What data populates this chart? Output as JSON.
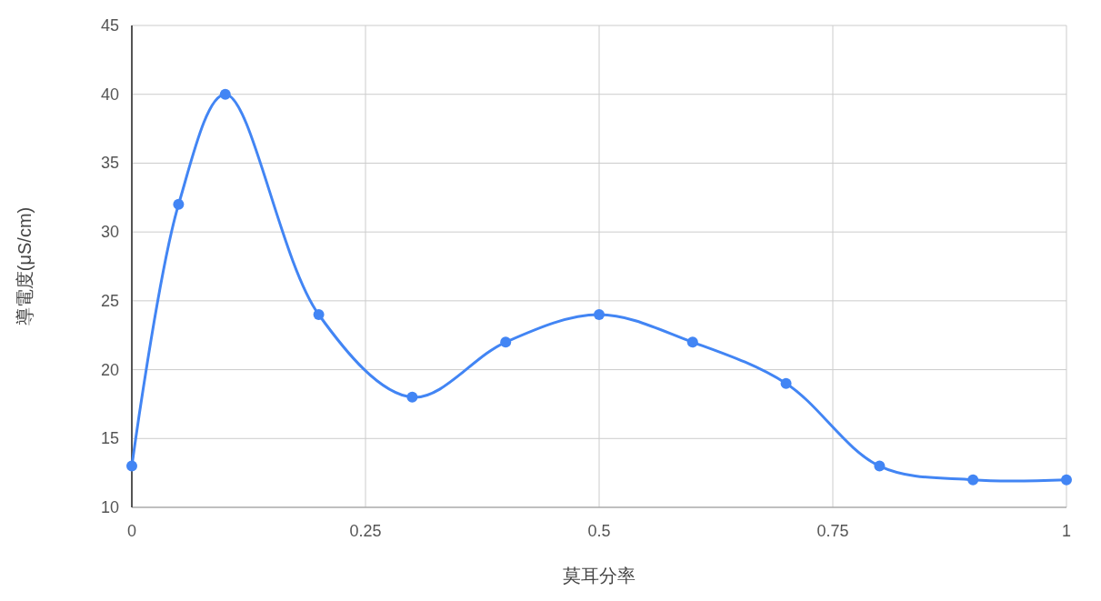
{
  "chart_data": {
    "type": "line",
    "xlabel": "莫耳分率",
    "ylabel": "導電度(μS/cm)",
    "x": [
      0,
      0.05,
      0.1,
      0.2,
      0.3,
      0.4,
      0.5,
      0.6,
      0.7,
      0.8,
      0.9,
      1
    ],
    "series": [
      {
        "color": "#4285f4",
        "values": [
          13,
          32,
          40,
          24,
          18,
          22,
          24,
          22,
          19,
          13,
          12,
          12
        ]
      }
    ],
    "xlim": [
      0,
      1
    ],
    "xticks": [
      0,
      0.25,
      0.5,
      0.75,
      1
    ],
    "ylim": [
      10,
      45
    ],
    "yticks": [
      10,
      15,
      20,
      25,
      30,
      35,
      40,
      45
    ],
    "grid": true,
    "marker": "circle",
    "line_style": "solid"
  }
}
